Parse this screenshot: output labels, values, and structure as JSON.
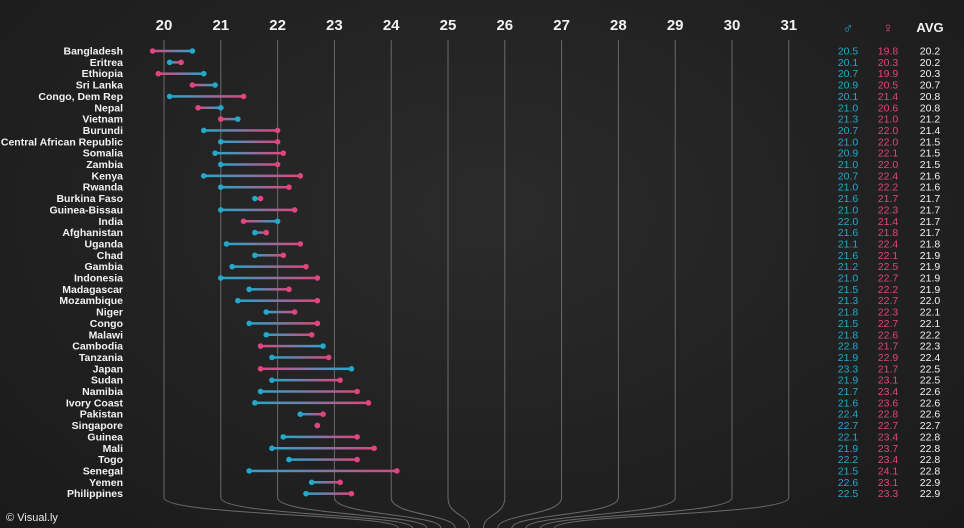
{
  "colors": {
    "male": "#23a8cc",
    "female": "#e0457e",
    "text": "#f2f2f2",
    "grid": "#6a6a6a",
    "background": "#222222"
  },
  "source": "© Visual.ly",
  "headers": {
    "male_symbol": "♂",
    "female_symbol": "♀",
    "avg": "AVG"
  },
  "chart_data": {
    "type": "dumbbell",
    "x_ticks": [
      20,
      21,
      22,
      23,
      24,
      25,
      26,
      27,
      28,
      29,
      30,
      31
    ],
    "xlim": [
      20,
      31
    ],
    "rows": [
      {
        "country": "Bangladesh",
        "male": 20.5,
        "female": 19.8,
        "avg": 20.2
      },
      {
        "country": "Eritrea",
        "male": 20.1,
        "female": 20.3,
        "avg": 20.2
      },
      {
        "country": "Ethiopia",
        "male": 20.7,
        "female": 19.9,
        "avg": 20.3
      },
      {
        "country": "Sri Lanka",
        "male": 20.9,
        "female": 20.5,
        "avg": 20.7
      },
      {
        "country": "Congo, Dem Rep",
        "male": 20.1,
        "female": 21.4,
        "avg": 20.8
      },
      {
        "country": "Nepal",
        "male": 21.0,
        "female": 20.6,
        "avg": 20.8
      },
      {
        "country": "Vietnam",
        "male": 21.3,
        "female": 21.0,
        "avg": 21.2
      },
      {
        "country": "Burundi",
        "male": 20.7,
        "female": 22.0,
        "avg": 21.4
      },
      {
        "country": "Central African Republic",
        "male": 21.0,
        "female": 22.0,
        "avg": 21.5
      },
      {
        "country": "Somalia",
        "male": 20.9,
        "female": 22.1,
        "avg": 21.5
      },
      {
        "country": "Zambia",
        "male": 21.0,
        "female": 22.0,
        "avg": 21.5
      },
      {
        "country": "Kenya",
        "male": 20.7,
        "female": 22.4,
        "avg": 21.6
      },
      {
        "country": "Rwanda",
        "male": 21.0,
        "female": 22.2,
        "avg": 21.6
      },
      {
        "country": "Burkina Faso",
        "male": 21.6,
        "female": 21.7,
        "avg": 21.7
      },
      {
        "country": "Guinea-Bissau",
        "male": 21.0,
        "female": 22.3,
        "avg": 21.7
      },
      {
        "country": "India",
        "male": 22.0,
        "female": 21.4,
        "avg": 21.7
      },
      {
        "country": "Afghanistan",
        "male": 21.6,
        "female": 21.8,
        "avg": 21.7
      },
      {
        "country": "Uganda",
        "male": 21.1,
        "female": 22.4,
        "avg": 21.8
      },
      {
        "country": "Chad",
        "male": 21.6,
        "female": 22.1,
        "avg": 21.9
      },
      {
        "country": "Gambia",
        "male": 21.2,
        "female": 22.5,
        "avg": 21.9
      },
      {
        "country": "Indonesia",
        "male": 21.0,
        "female": 22.7,
        "avg": 21.9
      },
      {
        "country": "Madagascar",
        "male": 21.5,
        "female": 22.2,
        "avg": 21.9
      },
      {
        "country": "Mozambique",
        "male": 21.3,
        "female": 22.7,
        "avg": 22.0
      },
      {
        "country": "Niger",
        "male": 21.8,
        "female": 22.3,
        "avg": 22.1
      },
      {
        "country": "Congo",
        "male": 21.5,
        "female": 22.7,
        "avg": 22.1
      },
      {
        "country": "Malawi",
        "male": 21.8,
        "female": 22.6,
        "avg": 22.2
      },
      {
        "country": "Cambodia",
        "male": 22.8,
        "female": 21.7,
        "avg": 22.3
      },
      {
        "country": "Tanzania",
        "male": 21.9,
        "female": 22.9,
        "avg": 22.4
      },
      {
        "country": "Japan",
        "male": 23.3,
        "female": 21.7,
        "avg": 22.5
      },
      {
        "country": "Sudan",
        "male": 21.9,
        "female": 23.1,
        "avg": 22.5
      },
      {
        "country": "Namibia",
        "male": 21.7,
        "female": 23.4,
        "avg": 22.6
      },
      {
        "country": "Ivory Coast",
        "male": 21.6,
        "female": 23.6,
        "avg": 22.6
      },
      {
        "country": "Pakistan",
        "male": 22.4,
        "female": 22.8,
        "avg": 22.6
      },
      {
        "country": "Singapore",
        "male": 22.7,
        "female": 22.7,
        "avg": 22.7
      },
      {
        "country": "Guinea",
        "male": 22.1,
        "female": 23.4,
        "avg": 22.8
      },
      {
        "country": "Mali",
        "male": 21.9,
        "female": 23.7,
        "avg": 22.8
      },
      {
        "country": "Togo",
        "male": 22.2,
        "female": 23.4,
        "avg": 22.8
      },
      {
        "country": "Senegal",
        "male": 21.5,
        "female": 24.1,
        "avg": 22.8
      },
      {
        "country": "Yemen",
        "male": 22.6,
        "female": 23.1,
        "avg": 22.9
      },
      {
        "country": "Philippines",
        "male": 22.5,
        "female": 23.3,
        "avg": 22.9
      }
    ]
  }
}
